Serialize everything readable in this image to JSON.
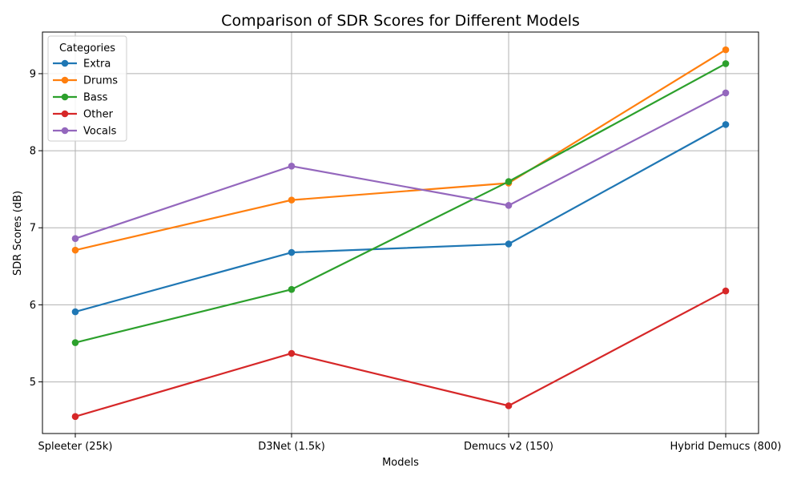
{
  "chart_data": {
    "type": "line",
    "title": "Comparison of SDR Scores for Different Models",
    "xlabel": "Models",
    "ylabel": "SDR Scores (dB)",
    "categories": [
      "Spleeter (25k)",
      "D3Net (1.5k)",
      "Demucs v2 (150)",
      "Hybrid Demucs (800)"
    ],
    "ylim": [
      4.33,
      9.54
    ],
    "yticks": [
      5,
      6,
      7,
      8,
      9
    ],
    "grid": true,
    "legend": {
      "title": "Categories",
      "placement": "top-left"
    },
    "series": [
      {
        "name": "Extra",
        "color": "#1f77b4",
        "values": [
          5.91,
          6.68,
          6.79,
          8.34
        ]
      },
      {
        "name": "Drums",
        "color": "#ff7f0e",
        "values": [
          6.71,
          7.36,
          7.58,
          9.31
        ]
      },
      {
        "name": "Bass",
        "color": "#2ca02c",
        "values": [
          5.51,
          6.2,
          7.6,
          9.13
        ]
      },
      {
        "name": "Other",
        "color": "#d62728",
        "values": [
          4.55,
          5.37,
          4.69,
          6.18
        ]
      },
      {
        "name": "Vocals",
        "color": "#9467bd",
        "values": [
          6.86,
          7.8,
          7.29,
          8.75
        ]
      }
    ]
  }
}
